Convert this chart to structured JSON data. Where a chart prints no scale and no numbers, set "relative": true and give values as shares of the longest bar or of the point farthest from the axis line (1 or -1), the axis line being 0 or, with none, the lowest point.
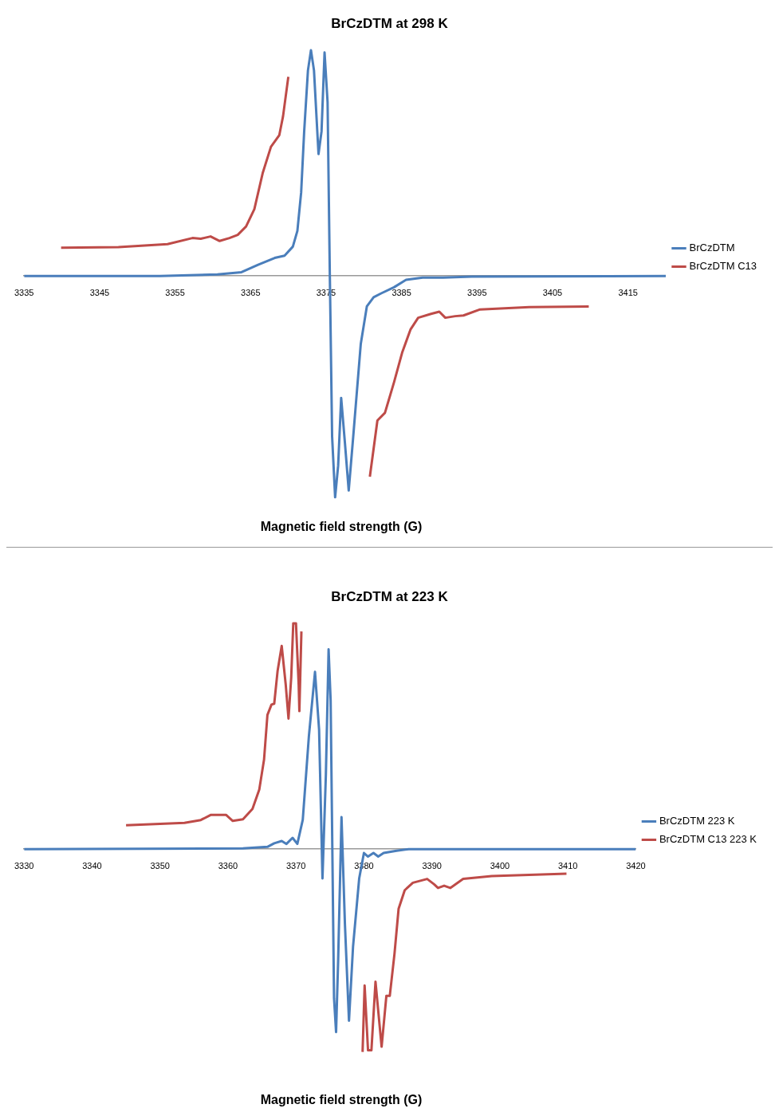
{
  "chart_data": [
    {
      "type": "line",
      "title": "BrCzDTM at 298 K",
      "xlabel": "Magnetic field strength (G)",
      "relative": true,
      "xlim": [
        3335,
        3420
      ],
      "xticks": [
        3335,
        3345,
        3355,
        3365,
        3375,
        3385,
        3395,
        3405,
        3415
      ],
      "grid": false,
      "legend": "right",
      "marker": "none",
      "line_style": "solid",
      "series": [
        {
          "name": "BrCzDTM",
          "color": "#4a7ebb",
          "x": [
            3335,
            3353,
            3360.6,
            3363.8,
            3366,
            3368.2,
            3369.5,
            3370.6,
            3371.2,
            3371.7,
            3372.1,
            3372.6,
            3373,
            3373.4,
            3374,
            3374.4,
            3374.8,
            3375.2,
            3375.5,
            3375.8,
            3376.2,
            3376.6,
            3377,
            3377.5,
            3378,
            3378.6,
            3379.6,
            3380.4,
            3381.3,
            3382.3,
            3384,
            3385.6,
            3387.8,
            3390.5,
            3394.3,
            3420
          ],
          "values": [
            0,
            0,
            0.007,
            0.017,
            0.05,
            0.08,
            0.09,
            0.13,
            0.2,
            0.37,
            0.64,
            0.91,
            1,
            0.91,
            0.54,
            0.64,
            0.99,
            0.77,
            0,
            -0.71,
            -0.98,
            -0.84,
            -0.54,
            -0.74,
            -0.95,
            -0.71,
            -0.3,
            -0.135,
            -0.094,
            -0.077,
            -0.05,
            -0.017,
            -0.007,
            -0.007,
            -0.003,
            0
          ]
        },
        {
          "name": "BrCzDTM C13",
          "color": "#be4b48",
          "x": [
            3339.9,
            3347.5,
            3354,
            3357.3,
            3358.4,
            3359.7,
            3360.9,
            3362.2,
            3363.3,
            3364.4,
            3365.5,
            3366.6,
            3367.7,
            3368.8,
            3369.3,
            3370,
            3375,
            3380.8,
            3381.8,
            3382.8,
            3384,
            3385.1,
            3386.2,
            3387.2,
            3388.9,
            3390,
            3390.8,
            3392.1,
            3393.2,
            3395.4,
            3401.9,
            3409.8
          ],
          "values": [
            0.125,
            0.128,
            0.141,
            0.168,
            0.165,
            0.175,
            0.155,
            0.168,
            0.182,
            0.219,
            0.296,
            0.455,
            0.572,
            0.623,
            0.707,
            0.882,
            null,
            -0.889,
            -0.64,
            -0.606,
            -0.471,
            -0.337,
            -0.236,
            -0.185,
            -0.168,
            -0.158,
            -0.185,
            -0.178,
            -0.175,
            -0.148,
            -0.138,
            -0.135
          ]
        }
      ]
    },
    {
      "type": "line",
      "title": "BrCzDTM at 223 K",
      "xlabel": "Magnetic field strength (G)",
      "relative": true,
      "xlim": [
        3330,
        3420
      ],
      "xticks": [
        3330,
        3340,
        3350,
        3360,
        3370,
        3380,
        3390,
        3400,
        3410,
        3420
      ],
      "grid": false,
      "legend": "right",
      "marker": "none",
      "line_style": "solid",
      "series": [
        {
          "name": "BrCzDTM 223 K",
          "color": "#4a7ebb",
          "x": [
            3330,
            3362.2,
            3365.8,
            3366.8,
            3367.9,
            3368.6,
            3369.5,
            3370.2,
            3371,
            3371.9,
            3372.8,
            3373.4,
            3373.9,
            3374.4,
            3374.8,
            3375.1,
            3375.6,
            3375.9,
            3376.2,
            3376.7,
            3377.2,
            3377.8,
            3378.4,
            3379.3,
            3380,
            3380.6,
            3381.4,
            3382.1,
            3382.9,
            3384.8,
            3386.6,
            3420
          ],
          "values": [
            0,
            0.003,
            0.01,
            0.026,
            0.036,
            0.023,
            0.05,
            0.023,
            0.13,
            0.5,
            0.785,
            0.53,
            -0.13,
            0.33,
            0.885,
            0.66,
            -0.66,
            -0.81,
            -0.5,
            0.142,
            -0.33,
            -0.76,
            -0.43,
            -0.13,
            -0.017,
            -0.033,
            -0.017,
            -0.033,
            -0.017,
            -0.007,
            0,
            0
          ]
        },
        {
          "name": "BrCzDTM C13 223 K",
          "color": "#be4b48",
          "x": [
            3345,
            3353.6,
            3356,
            3357.5,
            3358.7,
            3359.7,
            3360.7,
            3362.2,
            3363.6,
            3364.6,
            3365.3,
            3365.8,
            3366.4,
            3366.8,
            3367.3,
            3367.9,
            3368.5,
            3368.9,
            3369.3,
            3369.6,
            3370,
            3370.4,
            3370.5,
            3370.8,
            3375,
            3379.8,
            3380.1,
            3380.6,
            3381.1,
            3381.7,
            3382.6,
            3383.3,
            3383.8,
            3384.5,
            3385.1,
            3386,
            3387.2,
            3389.3,
            3390.3,
            3390.9,
            3391.8,
            3392.7,
            3394.6,
            3398.8,
            3409.8
          ],
          "values": [
            0.106,
            0.116,
            0.129,
            0.152,
            0.152,
            0.152,
            0.125,
            0.132,
            0.178,
            0.264,
            0.396,
            0.594,
            0.64,
            0.644,
            0.79,
            0.9,
            0.726,
            0.578,
            0.76,
            1,
            1,
            0.726,
            0.611,
            0.964,
            null,
            -0.898,
            -0.604,
            -0.891,
            -0.891,
            -0.587,
            -0.875,
            -0.65,
            -0.65,
            -0.462,
            -0.264,
            -0.182,
            -0.149,
            -0.132,
            -0.155,
            -0.172,
            -0.162,
            -0.172,
            -0.132,
            -0.119,
            -0.109
          ]
        }
      ]
    }
  ]
}
